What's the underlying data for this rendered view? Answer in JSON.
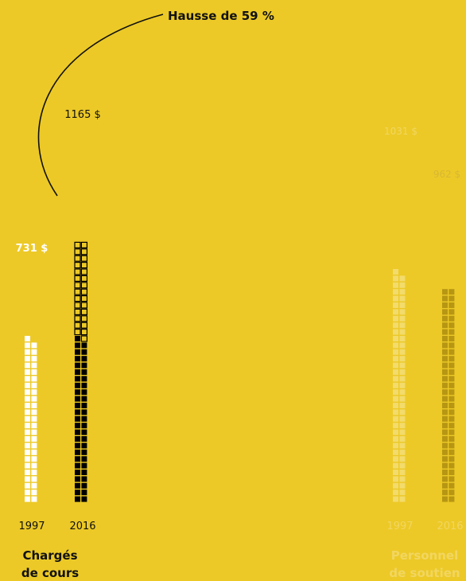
{
  "annotation": "Hausse de 59 %",
  "colors": {
    "background": "#ECC927",
    "white_squares": "#FFFFFF",
    "black_squares": "#000000",
    "faded_white": "#F3DB6C",
    "faded_dark": "#B69612",
    "text_dark": "#111111",
    "text_faded": "#F2D661"
  },
  "chart_data": {
    "type": "bar",
    "unit": "$",
    "groups": [
      {
        "name": "Chargés de cours",
        "name_lines": [
          "Chargés",
          "de cours"
        ],
        "highlighted": true,
        "bars": [
          {
            "year": "1997",
            "value": 731,
            "label": "731 $"
          },
          {
            "year": "2016",
            "value": 1165,
            "label": "1165 $"
          }
        ]
      },
      {
        "name": "Personnel de soutien",
        "name_lines": [
          "Personnel",
          "de soutien"
        ],
        "highlighted": false,
        "bars": [
          {
            "year": "1997",
            "value": 1031,
            "label": "1031 $"
          },
          {
            "year": "2016",
            "value": 962,
            "label": "962 $"
          }
        ]
      }
    ]
  }
}
